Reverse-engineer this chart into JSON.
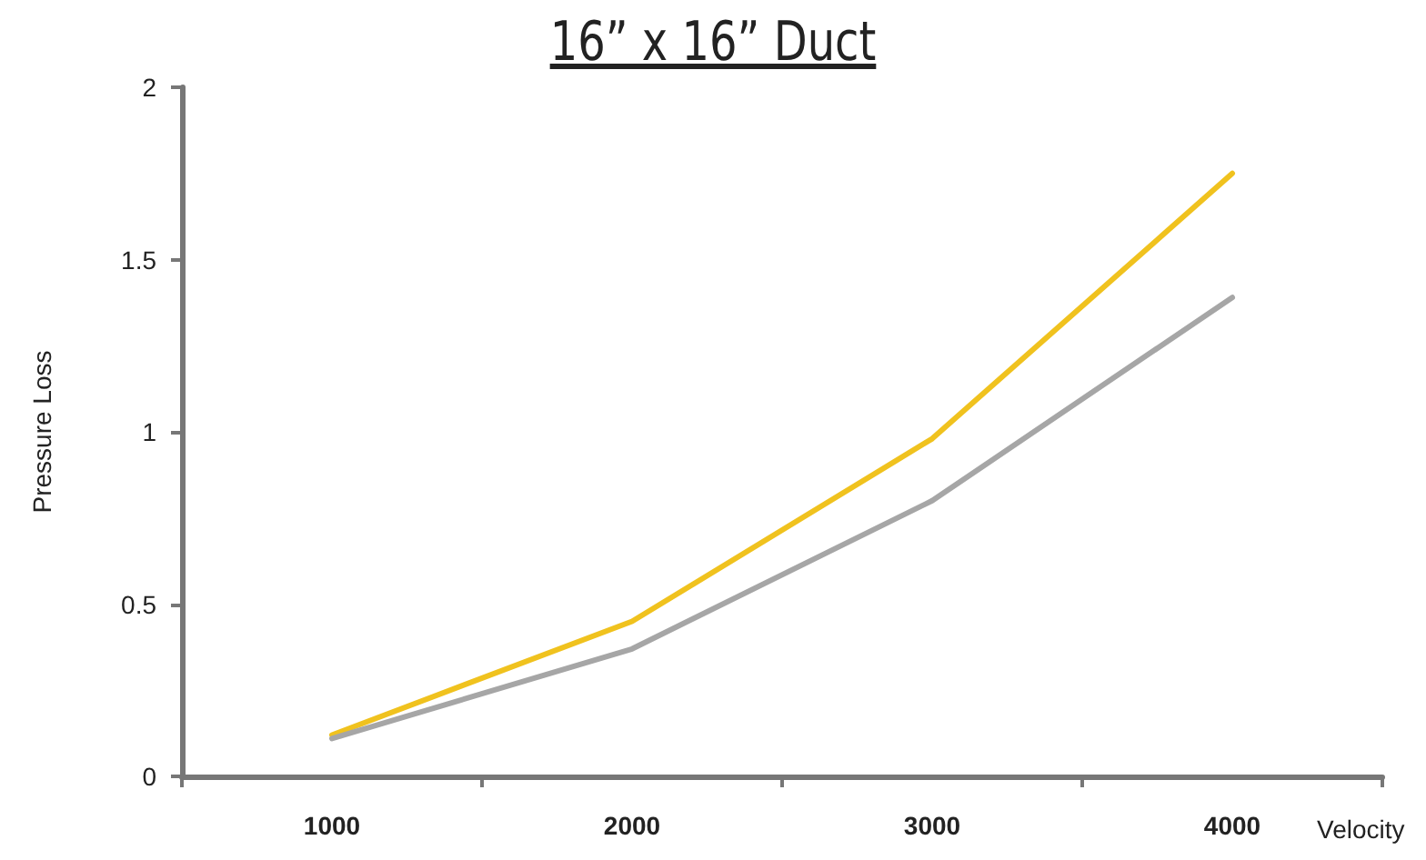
{
  "chart_data": {
    "type": "line",
    "title": "16” x 16” Duct",
    "xlabel": "Velocity",
    "ylabel": "Pressure Loss",
    "categories": [
      "1000",
      "2000",
      "3000",
      "4000"
    ],
    "series": [
      {
        "color": "#f0c21e",
        "values": [
          0.12,
          0.45,
          0.98,
          1.75
        ]
      },
      {
        "color": "#a6a6a6",
        "values": [
          0.11,
          0.37,
          0.8,
          1.39
        ]
      }
    ],
    "ylim": [
      0,
      2
    ],
    "yticks": [
      0,
      0.5,
      1,
      1.5,
      2
    ],
    "grid": false,
    "marker": "none",
    "line_style": "solid"
  }
}
